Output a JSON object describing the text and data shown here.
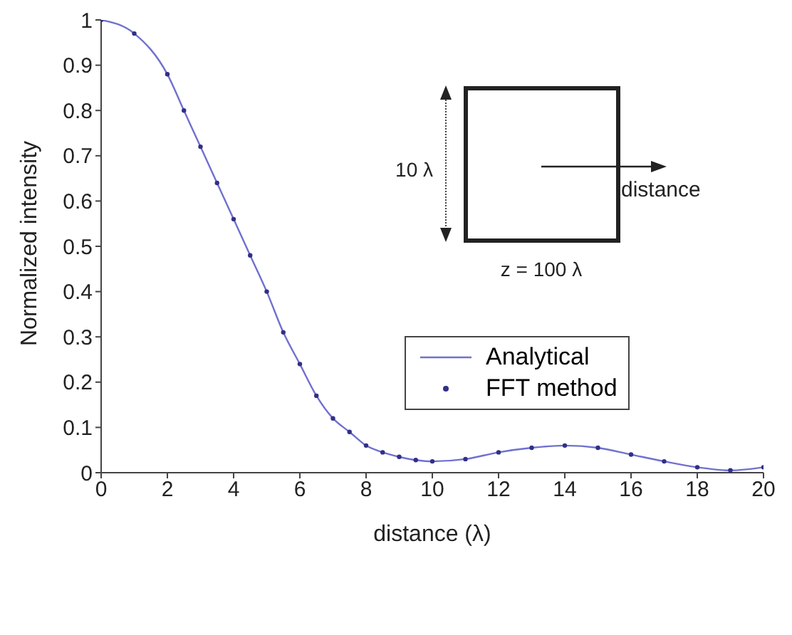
{
  "chart_data": {
    "type": "line",
    "xlabel": "distance (λ)",
    "ylabel": "Normalized intensity",
    "xlim": [
      0,
      20
    ],
    "ylim": [
      0,
      1
    ],
    "xticks": [
      0,
      2,
      4,
      6,
      8,
      10,
      12,
      14,
      16,
      18,
      20
    ],
    "yticks": [
      0,
      0.1,
      0.2,
      0.3,
      0.4,
      0.5,
      0.6,
      0.7,
      0.8,
      0.9,
      1
    ],
    "grid": false,
    "legend": "right",
    "annotations": [
      "10 λ",
      "distance",
      "z = 100 λ"
    ],
    "x": [
      0,
      1,
      2,
      2.5,
      3,
      3.5,
      4,
      4.5,
      5,
      5.5,
      6,
      6.5,
      7,
      7.5,
      8,
      8.5,
      9,
      9.5,
      10,
      11,
      12,
      13,
      14,
      15,
      16,
      17,
      18,
      19,
      20
    ],
    "series": [
      {
        "name": "Analytical",
        "color": "#7070d0",
        "marker": "none",
        "line_style": "solid",
        "values": [
          1.0,
          0.97,
          0.88,
          0.8,
          0.72,
          0.64,
          0.56,
          0.48,
          0.4,
          0.31,
          0.24,
          0.17,
          0.12,
          0.09,
          0.06,
          0.045,
          0.035,
          0.028,
          0.025,
          0.03,
          0.045,
          0.055,
          0.06,
          0.055,
          0.04,
          0.025,
          0.012,
          0.005,
          0.012
        ]
      },
      {
        "name": "FFT method",
        "type": "scatter",
        "color": "#303088",
        "marker": "circle",
        "values": [
          1.0,
          0.97,
          0.88,
          0.8,
          0.72,
          0.64,
          0.56,
          0.48,
          0.4,
          0.31,
          0.24,
          0.17,
          0.12,
          0.09,
          0.06,
          0.045,
          0.035,
          0.028,
          0.025,
          0.03,
          0.045,
          0.055,
          0.06,
          0.055,
          0.04,
          0.025,
          0.012,
          0.005,
          0.012
        ]
      }
    ]
  }
}
